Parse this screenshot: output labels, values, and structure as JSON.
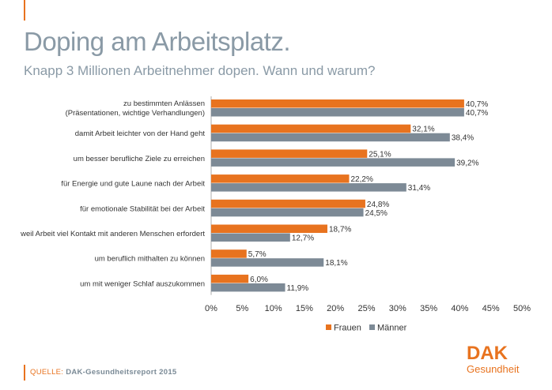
{
  "header": {
    "title": "Doping am Arbeitsplatz.",
    "subtitle": "Knapp 3 Millionen Arbeitnehmer dopen. Wann und warum?"
  },
  "source": {
    "label": "QUELLE:",
    "value": "DAK-Gesundheitsreport 2015"
  },
  "logo": {
    "line1": "DAK",
    "line2": "Gesundheit"
  },
  "colors": {
    "frauen": "#e8731f",
    "maenner": "#7d8a96",
    "accent": "#e8731f",
    "text_grey": "#8a9aa6"
  },
  "chart_data": {
    "type": "bar",
    "orientation": "horizontal",
    "categories": [
      [
        "zu bestimmten  Anlässen",
        "(Präsentationen, wichtige Verhandlungen)"
      ],
      [
        "damit Arbeit leichter von der Hand geht"
      ],
      [
        "um besser berufliche Ziele zu erreichen"
      ],
      [
        "für Energie und gute Laune nach der Arbeit"
      ],
      [
        "für emotionale Stabilität bei der Arbeit"
      ],
      [
        "weil Arbeit viel Kontakt mit anderen Menschen erfordert"
      ],
      [
        "um beruflich mithalten zu können"
      ],
      [
        "um mit weniger Schlaf auszukommen"
      ]
    ],
    "series": [
      {
        "name": "Frauen",
        "values": [
          40.7,
          32.1,
          25.1,
          22.2,
          24.8,
          18.7,
          5.7,
          6.0
        ],
        "labels": [
          "40,7%",
          "32,1%",
          "25,1%",
          "22,2%",
          "24,8%",
          "18,7%",
          "5,7%",
          "6,0%"
        ]
      },
      {
        "name": "Männer",
        "values": [
          40.7,
          38.4,
          39.2,
          31.4,
          24.5,
          12.7,
          18.1,
          11.9
        ],
        "labels": [
          "40,7%",
          "38,4%",
          "39,2%",
          "31,4%",
          "24,5%",
          "12,7%",
          "18,1%",
          "11,9%"
        ]
      }
    ],
    "xlim": [
      0,
      50
    ],
    "xticks": [
      "0%",
      "5%",
      "10%",
      "15%",
      "20%",
      "25%",
      "30%",
      "35%",
      "40%",
      "45%",
      "50%"
    ],
    "legend_position": "bottom-center",
    "grid": false
  }
}
